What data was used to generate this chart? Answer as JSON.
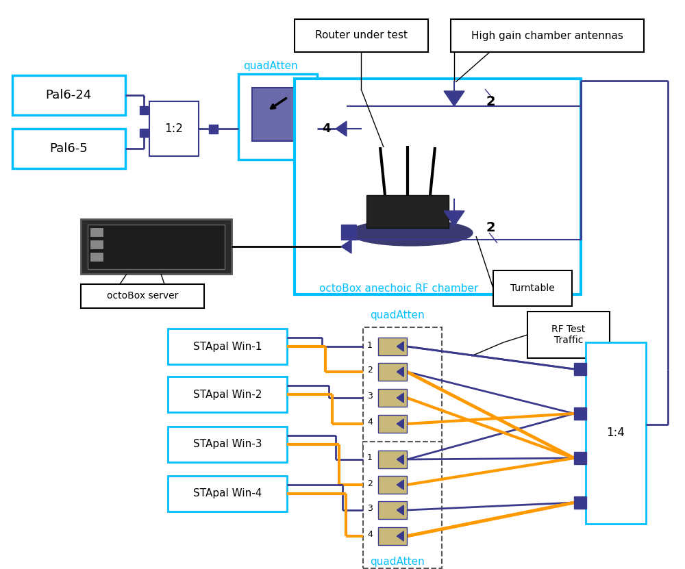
{
  "bg": "#ffffff",
  "cyan": "#00bfff",
  "dark_blue": "#3a3a8c",
  "orange": "#ff9900",
  "black": "#000000",
  "tan": "#c8b87a",
  "router_under_test": "Router under test",
  "high_gain": "High gain chamber antennas",
  "octobox_chamber_label": "octoBox anechoic RF chamber",
  "octobox_server_label": "octoBox server",
  "turntable_label": "Turntable",
  "rf_test_label": "RF Test\nTraffic",
  "quad_atten": "quadAtten",
  "splitter_12": "1:2",
  "splitter_14": "1:4",
  "num2": "2",
  "num4": "4",
  "sta_labels": [
    "STApal Win-1",
    "STApal Win-2",
    "STApal Win-3",
    "STApal Win-4"
  ],
  "pal_labels": [
    "Pal6-24",
    "Pal6-5"
  ],
  "atten_nums": [
    "1",
    "2",
    "3",
    "4"
  ]
}
